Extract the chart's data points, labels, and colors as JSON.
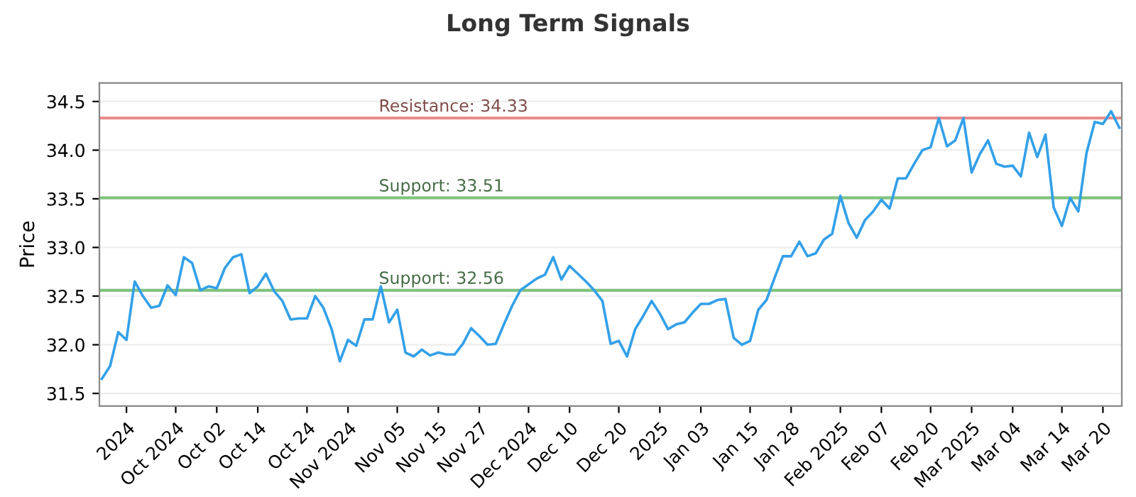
{
  "chart_data": {
    "type": "line",
    "title": "Long Term Signals",
    "ylabel": "Price",
    "categories": [
      null,
      null,
      null,
      "2024",
      null,
      null,
      null,
      null,
      null,
      "Oct 2024",
      null,
      null,
      null,
      null,
      "Oct 02",
      null,
      null,
      null,
      null,
      "Oct 14",
      null,
      null,
      null,
      null,
      null,
      "Oct 24",
      null,
      null,
      null,
      null,
      "Nov 2024",
      null,
      null,
      null,
      null,
      null,
      "Nov 05",
      null,
      null,
      null,
      null,
      "Nov 15",
      null,
      null,
      null,
      null,
      "Nov 27",
      null,
      null,
      null,
      null,
      null,
      "Dec 2024",
      null,
      null,
      null,
      null,
      "Dec 10",
      null,
      null,
      null,
      null,
      null,
      "Dec 20",
      null,
      null,
      null,
      null,
      "2025",
      null,
      null,
      null,
      null,
      "Jan 03",
      null,
      null,
      null,
      null,
      null,
      "Jan 15",
      null,
      null,
      null,
      null,
      "Jan 28",
      null,
      null,
      null,
      null,
      null,
      "Feb 2025",
      null,
      null,
      null,
      null,
      "Feb 07",
      null,
      null,
      null,
      null,
      null,
      "Feb 20",
      null,
      null,
      null,
      null,
      "Mar 2025",
      null,
      null,
      null,
      null,
      "Mar 04",
      null,
      null,
      null,
      null,
      null,
      "Mar 14",
      null,
      null,
      null,
      null,
      "Mar 20",
      null,
      null
    ],
    "series": [
      {
        "color": "#33a0e8",
        "values": [
          31.65,
          31.78,
          32.13,
          32.05,
          32.65,
          32.5,
          32.38,
          32.4,
          32.61,
          32.51,
          32.9,
          32.84,
          32.56,
          32.6,
          32.58,
          32.79,
          32.9,
          32.93,
          32.53,
          32.6,
          32.73,
          32.55,
          32.45,
          32.26,
          32.27,
          32.27,
          32.5,
          32.38,
          32.16,
          31.83,
          32.05,
          31.99,
          32.26,
          32.26,
          32.6,
          32.23,
          32.36,
          31.92,
          31.88,
          31.95,
          31.89,
          31.92,
          31.9,
          31.9,
          32.01,
          32.17,
          32.09,
          32.0,
          32.01,
          32.21,
          32.4,
          32.56,
          32.62,
          32.68,
          32.72,
          32.9,
          32.67,
          32.81,
          32.73,
          32.65,
          32.56,
          32.45,
          32.01,
          32.04,
          31.88,
          32.16,
          32.3,
          32.45,
          32.32,
          32.16,
          32.21,
          32.23,
          32.33,
          32.42,
          32.42,
          32.46,
          32.47,
          32.07,
          32.0,
          32.04,
          32.36,
          32.46,
          32.69,
          32.91,
          32.91,
          33.06,
          32.91,
          32.94,
          33.08,
          33.14,
          33.53,
          33.25,
          33.1,
          33.28,
          33.37,
          33.49,
          33.4,
          33.71,
          33.71,
          33.86,
          34.0,
          34.03,
          34.33,
          34.04,
          34.1,
          34.33,
          33.77,
          33.96,
          34.1,
          33.86,
          33.83,
          33.84,
          33.73,
          34.18,
          33.93,
          34.16,
          33.41,
          33.22,
          33.51,
          33.37,
          33.97,
          34.29,
          34.27,
          34.4,
          34.23
        ]
      }
    ],
    "ylim": [
      31.37,
      34.69
    ],
    "yticks": [
      31.5,
      {
        "value": 32,
        "label": "32.0"
      },
      32.5,
      {
        "value": 33,
        "label": "33.0"
      },
      33.5,
      {
        "value": 34,
        "label": "34.0"
      },
      34.5
    ],
    "grid": "y",
    "marker": "none",
    "line_style": "solid",
    "ref_lines": [
      {
        "axis": "y",
        "value": 34.33,
        "label": "Resistance: 34.33",
        "color": "#e88a8a"
      },
      {
        "axis": "y",
        "value": 33.51,
        "label": "Support: 33.51",
        "color": "#80c480"
      },
      {
        "axis": "y",
        "value": 32.56,
        "label": "Support: 32.56",
        "color": "#80c480"
      }
    ]
  }
}
